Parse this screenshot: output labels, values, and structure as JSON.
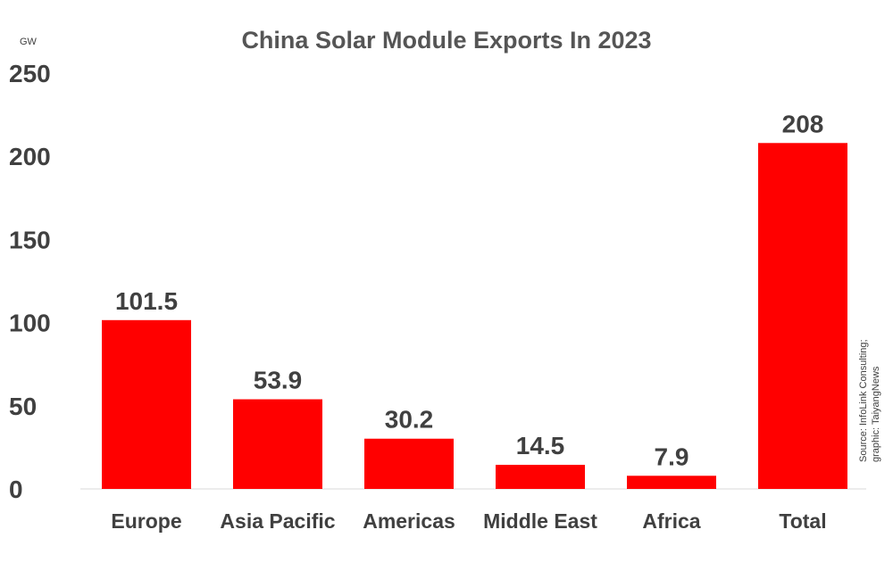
{
  "chart_data": {
    "type": "bar",
    "title": "China Solar Module Exports In 2023",
    "unit_label": "GW",
    "categories": [
      "Europe",
      "Asia Pacific",
      "Americas",
      "Middle East",
      "Africa",
      "Total"
    ],
    "values": [
      101.5,
      53.9,
      30.2,
      14.5,
      7.9,
      208
    ],
    "value_labels": [
      "101.5",
      "53.9",
      "30.2",
      "14.5",
      "7.9",
      "208"
    ],
    "yticks": [
      0,
      50,
      100,
      150,
      200,
      250
    ],
    "ylim": [
      0,
      250
    ],
    "grid": false,
    "legend": "none",
    "bar_color": "#ff0000",
    "source_lines": [
      "Source: InfoLink Consulting;",
      "graphic: TaiyangNews"
    ]
  }
}
